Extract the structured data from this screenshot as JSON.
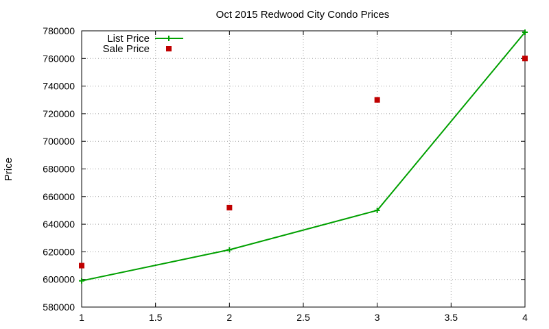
{
  "chart_data": {
    "type": "line",
    "title": "Oct 2015 Redwood City Condo Prices",
    "xlabel": "",
    "ylabel": "Price",
    "xlim": [
      1,
      4
    ],
    "ylim": [
      580000,
      780000
    ],
    "xticks": [
      1,
      1.5,
      2,
      2.5,
      3,
      3.5,
      4
    ],
    "xtick_labels": [
      "1",
      "1.5",
      "2",
      "2.5",
      "3",
      "3.5",
      "4"
    ],
    "yticks": [
      580000,
      600000,
      620000,
      640000,
      660000,
      680000,
      700000,
      720000,
      740000,
      760000,
      780000
    ],
    "ytick_labels": [
      "580000",
      "600000",
      "620000",
      "640000",
      "660000",
      "680000",
      "700000",
      "720000",
      "740000",
      "760000",
      "780000"
    ],
    "grid": true,
    "legend_position": "top-left",
    "series": [
      {
        "name": "List Price",
        "style": "line-with-plus-markers",
        "color": "#00a000",
        "x": [
          1,
          2,
          3,
          4
        ],
        "y": [
          599000,
          621500,
          650000,
          779000
        ]
      },
      {
        "name": "Sale Price",
        "style": "square-markers",
        "color": "#c00000",
        "x": [
          1,
          2,
          3,
          4
        ],
        "y": [
          610000,
          652000,
          730000,
          760000
        ]
      }
    ]
  }
}
